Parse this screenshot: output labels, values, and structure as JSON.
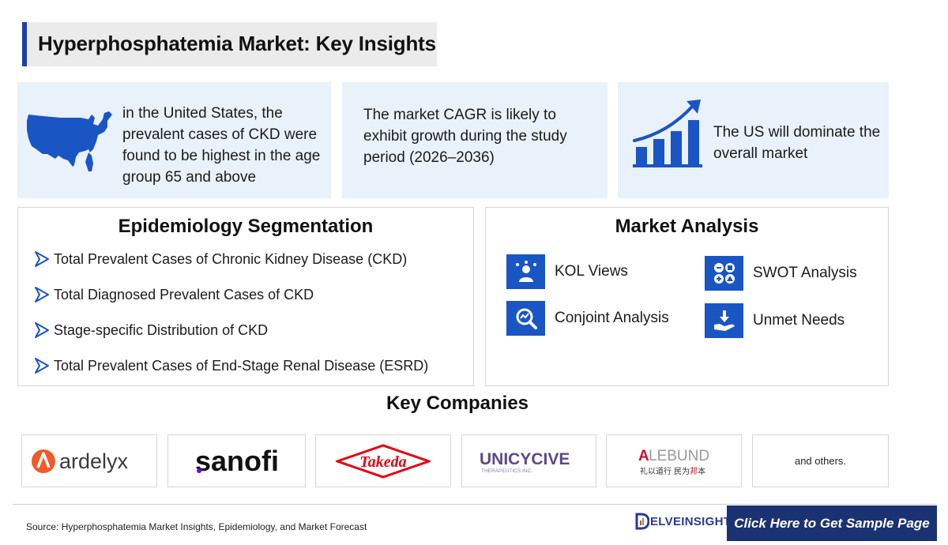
{
  "header": {
    "title": "Hyperphosphatemia Market: Key Insights"
  },
  "insights": [
    {
      "icon": "us-map-icon",
      "text": "in the United States, the prevalent cases of CKD were found to be highest in the age group 65 and above"
    },
    {
      "icon": "",
      "text": "The market CAGR is likely to exhibit growth during the study period (2026–2036)"
    },
    {
      "icon": "growth-chart-icon",
      "text": "The US will dominate the overall market"
    }
  ],
  "epidemiology": {
    "title": "Epidemiology Segmentation",
    "items": [
      "Total Prevalent Cases of Chronic Kidney Disease (CKD)",
      "Total Diagnosed Prevalent Cases of CKD",
      "Stage-specific Distribution of CKD",
      "Total Prevalent Cases of End-Stage Renal Disease (ESRD)"
    ]
  },
  "market_analysis": {
    "title": "Market Analysis",
    "items": [
      {
        "label": "KOL Views",
        "icon": "expert-icon"
      },
      {
        "label": "SWOT Analysis",
        "icon": "swot-icon"
      },
      {
        "label": "Conjoint Analysis",
        "icon": "analysis-magnifier-icon"
      },
      {
        "label": "Unmet Needs",
        "icon": "hand-download-icon"
      }
    ]
  },
  "companies": {
    "title": "Key Companies",
    "logos": [
      {
        "name": "ardelyx",
        "color": "#f05a28"
      },
      {
        "name": "sanofi",
        "color": "#111111"
      },
      {
        "name": "Takeda",
        "color": "#e60012"
      },
      {
        "name": "UNICYCIVE",
        "subtitle": "THERAPEUTICS INC.",
        "color": "#5a4a8a"
      },
      {
        "name": "ALEBUND",
        "subtitle": "礼以道行 民为邦本",
        "color": "#c8102e"
      }
    ],
    "others": "and others."
  },
  "footer": {
    "source": "Source: Hyperphosphatemia Market Insights, Epidemiology, and Market Forecast",
    "brand": "ELVEINSIGHT",
    "cta": "Click Here to Get Sample Page"
  },
  "colors": {
    "accent": "#1a55c4",
    "card_bg": "#e9f1fb",
    "cta_bg": "#1b3272"
  }
}
